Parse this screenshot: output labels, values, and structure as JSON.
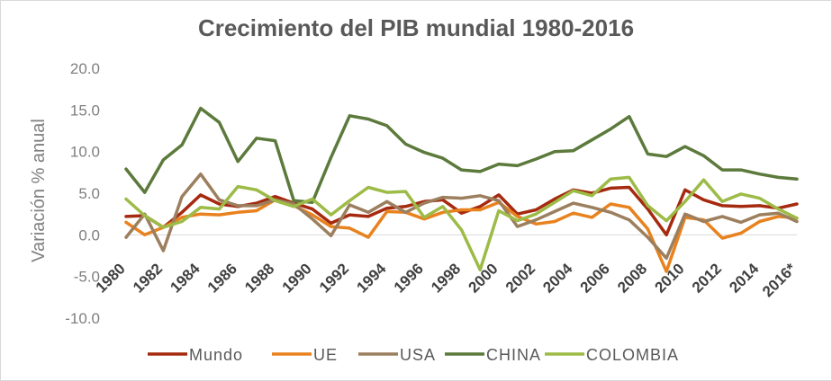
{
  "chart_data": {
    "type": "line",
    "title": "Crecimiento del PIB mundial 1980-2016",
    "ylabel": "Variación % anual",
    "xlabel": "",
    "ylim": [
      -10,
      20
    ],
    "yticks": [
      "20.0",
      "15.0",
      "10.0",
      "5.0",
      "0.0",
      "-5.0",
      "-10.0"
    ],
    "ytick_values": [
      20,
      15,
      10,
      5,
      0,
      -5,
      -10
    ],
    "x": [
      1980,
      1981,
      1982,
      1983,
      1984,
      1985,
      1986,
      1987,
      1988,
      1989,
      1990,
      1991,
      1992,
      1993,
      1994,
      1995,
      1996,
      1997,
      1998,
      1999,
      2000,
      2001,
      2002,
      2003,
      2004,
      2005,
      2006,
      2007,
      2008,
      2009,
      2010,
      2011,
      2012,
      2013,
      2014,
      2015,
      2016
    ],
    "xtick_labels": [
      "1980",
      "1982",
      "1984",
      "1986",
      "1988",
      "1990",
      "1992",
      "1994",
      "1996",
      "1998",
      "2000",
      "2002",
      "2004",
      "2006",
      "2008",
      "2010",
      "2012",
      "2014",
      "2016*"
    ],
    "legend_position": "bottom",
    "grid": false,
    "series": [
      {
        "name": "Mundo",
        "color": "#a52a0f",
        "values": [
          2.2,
          2.3,
          0.9,
          2.7,
          4.8,
          3.7,
          3.4,
          3.8,
          4.6,
          3.8,
          3.1,
          1.4,
          2.4,
          2.2,
          3.2,
          3.4,
          4.0,
          4.2,
          2.6,
          3.4,
          4.8,
          2.5,
          3.0,
          4.3,
          5.4,
          5.0,
          5.6,
          5.7,
          3.1,
          0.0,
          5.4,
          4.2,
          3.5,
          3.4,
          3.5,
          3.2,
          3.7
        ]
      },
      {
        "name": "UE",
        "color": "#e8821e",
        "values": [
          1.5,
          0.0,
          0.9,
          2.1,
          2.5,
          2.4,
          2.7,
          2.9,
          4.2,
          3.5,
          2.4,
          1.0,
          0.8,
          -0.3,
          2.8,
          2.7,
          1.9,
          2.7,
          3.0,
          3.0,
          3.9,
          2.2,
          1.3,
          1.6,
          2.6,
          2.1,
          3.7,
          3.3,
          0.7,
          -4.4,
          2.1,
          1.8,
          -0.4,
          0.2,
          1.6,
          2.2,
          2.0
        ]
      },
      {
        "name": "USA",
        "color": "#9c7f5e",
        "values": [
          -0.3,
          2.5,
          -1.9,
          4.6,
          7.3,
          4.2,
          3.5,
          3.5,
          4.2,
          3.7,
          1.9,
          -0.1,
          3.6,
          2.7,
          4.0,
          2.7,
          3.8,
          4.5,
          4.4,
          4.7,
          4.1,
          1.0,
          1.8,
          2.8,
          3.8,
          3.3,
          2.7,
          1.8,
          -0.3,
          -2.8,
          2.5,
          1.6,
          2.2,
          1.5,
          2.4,
          2.6,
          1.6
        ]
      },
      {
        "name": "CHINA",
        "color": "#5c7a3c",
        "values": [
          7.9,
          5.1,
          9.0,
          10.8,
          15.2,
          13.5,
          8.8,
          11.6,
          11.3,
          4.1,
          3.9,
          9.3,
          14.3,
          13.9,
          13.1,
          10.9,
          9.9,
          9.2,
          7.8,
          7.6,
          8.5,
          8.3,
          9.1,
          10.0,
          10.1,
          11.4,
          12.7,
          14.2,
          9.7,
          9.4,
          10.6,
          9.5,
          7.8,
          7.8,
          7.3,
          6.9,
          6.7
        ]
      },
      {
        "name": "COLOMBIA",
        "color": "#9dbb47",
        "values": [
          4.3,
          2.3,
          0.9,
          1.6,
          3.3,
          3.1,
          5.8,
          5.4,
          4.1,
          3.4,
          4.3,
          2.4,
          4.1,
          5.7,
          5.1,
          5.2,
          2.1,
          3.4,
          0.6,
          -4.2,
          2.9,
          1.7,
          2.5,
          3.9,
          5.3,
          4.7,
          6.7,
          6.9,
          3.5,
          1.7,
          4.0,
          6.6,
          4.0,
          4.9,
          4.4,
          3.1,
          2.0
        ]
      }
    ]
  }
}
